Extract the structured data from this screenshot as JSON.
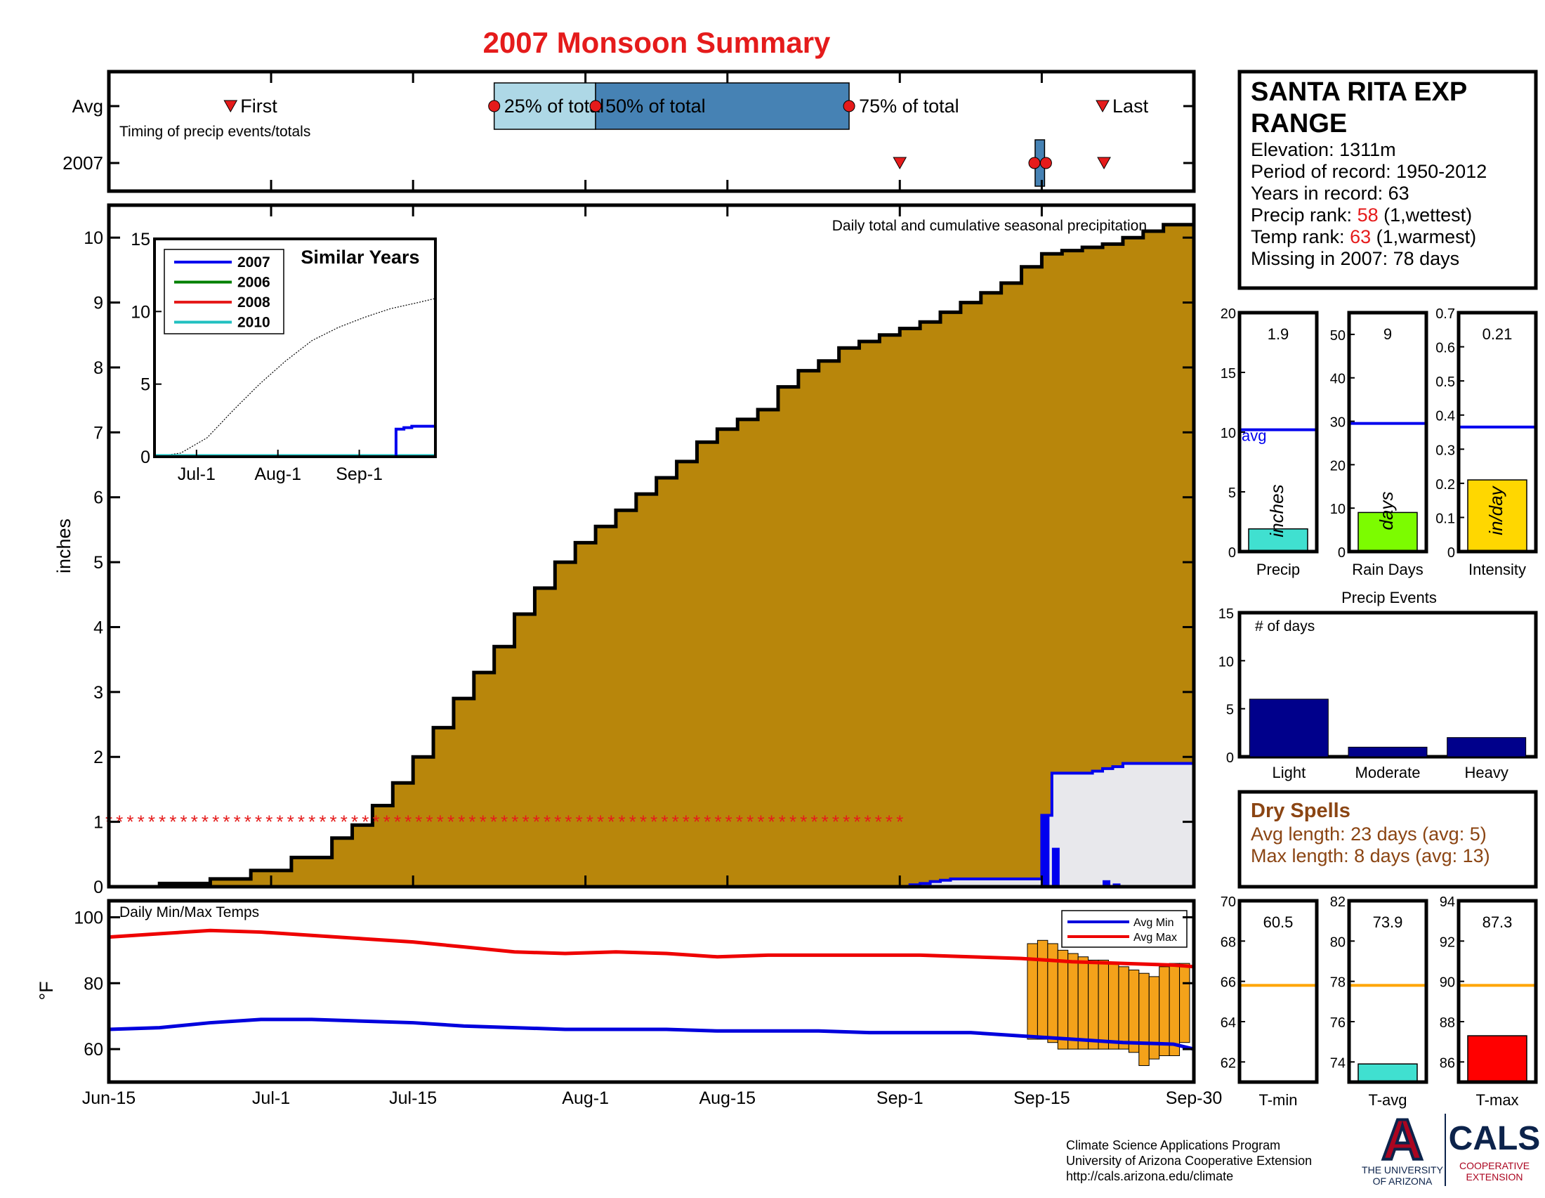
{
  "title": "2007 Monsoon Summary",
  "colors": {
    "title": "#e51b1b",
    "cum_fill": "#b8860b",
    "current": "#0000ee",
    "avg_temp_max": "#ee0000",
    "avg_temp_min": "#0000dd",
    "temp_bars": "#f4a21a",
    "box25": "#aed8e6",
    "box50": "#4682b4",
    "precip_bar": "#40e0d0",
    "raindays_bar": "#7cfc00",
    "intensity_bar": "#ffd700",
    "events_bar": "#00008b",
    "tavg_bar": "#40e0d0",
    "tmax_bar": "#ff0000",
    "avg_line_temp": "#ffa500",
    "dry_spell": "#8b4513",
    "rank_red": "#e51b1b"
  },
  "timing": {
    "row_avg": "Avg",
    "row_year": "2007",
    "caption": "Timing of precip events/totals",
    "first_label": "First",
    "last_label": "Last",
    "p25_label": "25% of total",
    "p50_label": "50% of total",
    "p75_label": "75% of total",
    "avg_first_day": 12,
    "avg_p25_day": 38,
    "avg_p50_day": 48,
    "avg_p75_day": 73,
    "avg_last_day": 98,
    "year_first_day": 78,
    "year_p25_day": 91,
    "year_p50_day": 92,
    "year_box_start_day": 91,
    "year_box_end_day": 92,
    "year_last_day": 98
  },
  "station": {
    "name_line1": "SANTA RITA EXP",
    "name_line2": "RANGE",
    "elevation": "Elevation: 1311m",
    "period": "Period of record: 1950-2012",
    "years": "Years in record: 63",
    "precip_rank_label": "Precip rank: ",
    "precip_rank_value": "58",
    "precip_rank_note": " (1,wettest)",
    "temp_rank_label": "Temp rank: ",
    "temp_rank_value": "63",
    "temp_rank_note": " (1,warmest)",
    "missing": "Missing in 2007: 78 days"
  },
  "main_chart": {
    "caption": "Daily total and cumulative seasonal precipitation",
    "ylabel": "inches",
    "ylim": [
      0,
      10.5
    ],
    "yticks": [
      "0",
      "1",
      "2",
      "3",
      "4",
      "5",
      "6",
      "7",
      "8",
      "9",
      "10"
    ],
    "xlim_days": [
      0,
      107
    ],
    "xticks": [
      {
        "day": 0,
        "label": "Jun-15"
      },
      {
        "day": 16,
        "label": "Jul-1"
      },
      {
        "day": 30,
        "label": "Jul-15"
      },
      {
        "day": 47,
        "label": "Aug-1"
      },
      {
        "day": 61,
        "label": "Aug-15"
      },
      {
        "day": 78,
        "label": "Sep-1"
      },
      {
        "day": 92,
        "label": "Sep-15"
      },
      {
        "day": 107,
        "label": "Sep-30"
      }
    ],
    "avg_cumulative": [
      [
        0,
        0
      ],
      [
        5,
        0.05
      ],
      [
        10,
        0.12
      ],
      [
        14,
        0.25
      ],
      [
        18,
        0.45
      ],
      [
        22,
        0.75
      ],
      [
        24,
        0.95
      ],
      [
        26,
        1.25
      ],
      [
        28,
        1.6
      ],
      [
        30,
        2.0
      ],
      [
        32,
        2.45
      ],
      [
        34,
        2.9
      ],
      [
        36,
        3.3
      ],
      [
        38,
        3.7
      ],
      [
        40,
        4.2
      ],
      [
        42,
        4.6
      ],
      [
        44,
        5.0
      ],
      [
        46,
        5.3
      ],
      [
        48,
        5.55
      ],
      [
        50,
        5.8
      ],
      [
        52,
        6.05
      ],
      [
        54,
        6.3
      ],
      [
        56,
        6.55
      ],
      [
        58,
        6.85
      ],
      [
        60,
        7.05
      ],
      [
        62,
        7.2
      ],
      [
        64,
        7.35
      ],
      [
        66,
        7.7
      ],
      [
        68,
        7.95
      ],
      [
        70,
        8.1
      ],
      [
        72,
        8.3
      ],
      [
        74,
        8.4
      ],
      [
        76,
        8.5
      ],
      [
        78,
        8.6
      ],
      [
        80,
        8.7
      ],
      [
        82,
        8.85
      ],
      [
        84,
        9.0
      ],
      [
        86,
        9.15
      ],
      [
        88,
        9.3
      ],
      [
        90,
        9.55
      ],
      [
        92,
        9.75
      ],
      [
        94,
        9.8
      ],
      [
        96,
        9.85
      ],
      [
        98,
        9.9
      ],
      [
        100,
        10.0
      ],
      [
        102,
        10.1
      ],
      [
        104,
        10.2
      ],
      [
        107,
        10.35
      ]
    ],
    "year_cumulative": [
      [
        78,
        0
      ],
      [
        79,
        0.03
      ],
      [
        80,
        0.05
      ],
      [
        81,
        0.08
      ],
      [
        82,
        0.1
      ],
      [
        83,
        0.12
      ],
      [
        84,
        0.12
      ],
      [
        89,
        0.12
      ],
      [
        91,
        0.12
      ],
      [
        92,
        1.1
      ],
      [
        93,
        1.75
      ],
      [
        95,
        1.75
      ],
      [
        97,
        1.78
      ],
      [
        98,
        1.82
      ],
      [
        99,
        1.85
      ],
      [
        100,
        1.9
      ],
      [
        107,
        1.9
      ]
    ],
    "year_daily": [
      [
        92,
        1.1
      ],
      [
        93,
        0.6
      ],
      [
        98,
        0.1
      ],
      [
        99,
        0.05
      ]
    ],
    "missing_marker_y": 1,
    "missing_start_day": 0,
    "missing_end_day": 78
  },
  "inset": {
    "title": "Similar Years",
    "ylim": [
      0,
      15
    ],
    "yticks": [
      "0",
      "5",
      "10",
      "15"
    ],
    "xlim_days": [
      0,
      107
    ],
    "xticks": [
      {
        "day": 16,
        "label": "Jul-1"
      },
      {
        "day": 47,
        "label": "Aug-1"
      },
      {
        "day": 78,
        "label": "Sep-1"
      }
    ],
    "legend": [
      {
        "name": "2007",
        "color": "#0000ee"
      },
      {
        "name": "2006",
        "color": "#008000"
      },
      {
        "name": "2008",
        "color": "#e51b1b"
      },
      {
        "name": "2010",
        "color": "#20c0c0"
      }
    ],
    "avg_line": [
      [
        0,
        0
      ],
      [
        10,
        0.25
      ],
      [
        20,
        1.3
      ],
      [
        30,
        3.2
      ],
      [
        40,
        5.0
      ],
      [
        50,
        6.6
      ],
      [
        60,
        8.0
      ],
      [
        70,
        8.9
      ],
      [
        80,
        9.6
      ],
      [
        90,
        10.2
      ],
      [
        100,
        10.6
      ],
      [
        107,
        10.9
      ]
    ],
    "year2007": [
      [
        0,
        0
      ],
      [
        91,
        0
      ],
      [
        92,
        1.9
      ],
      [
        95,
        2.0
      ],
      [
        98,
        2.1
      ],
      [
        107,
        2.1
      ]
    ]
  },
  "temps": {
    "caption": "Daily Min/Max Temps",
    "ylabel": "°F",
    "ylim": [
      50,
      105
    ],
    "yticks": [
      {
        "v": 60,
        "label": "60"
      },
      {
        "v": 80,
        "label": "80"
      },
      {
        "v": 100,
        "label": "100"
      }
    ],
    "legend_min": "Avg Min",
    "legend_max": "Avg Max",
    "avg_max": [
      [
        0,
        94
      ],
      [
        5,
        95
      ],
      [
        10,
        96
      ],
      [
        15,
        95.5
      ],
      [
        20,
        94.5
      ],
      [
        25,
        93.5
      ],
      [
        30,
        92.5
      ],
      [
        35,
        91
      ],
      [
        40,
        89.5
      ],
      [
        45,
        89
      ],
      [
        50,
        89.5
      ],
      [
        55,
        89
      ],
      [
        60,
        88
      ],
      [
        65,
        88.5
      ],
      [
        70,
        88.5
      ],
      [
        75,
        88.5
      ],
      [
        80,
        88.5
      ],
      [
        85,
        88
      ],
      [
        90,
        87.5
      ],
      [
        95,
        86.5
      ],
      [
        100,
        86
      ],
      [
        105,
        85.5
      ],
      [
        107,
        85
      ]
    ],
    "avg_min": [
      [
        0,
        66
      ],
      [
        5,
        66.5
      ],
      [
        10,
        68
      ],
      [
        15,
        69
      ],
      [
        20,
        69
      ],
      [
        25,
        68.5
      ],
      [
        30,
        68
      ],
      [
        35,
        67
      ],
      [
        40,
        66.5
      ],
      [
        45,
        66
      ],
      [
        50,
        66
      ],
      [
        55,
        66
      ],
      [
        60,
        65.5
      ],
      [
        65,
        65.5
      ],
      [
        70,
        65.5
      ],
      [
        75,
        65
      ],
      [
        80,
        65
      ],
      [
        85,
        65
      ],
      [
        90,
        64
      ],
      [
        95,
        63
      ],
      [
        100,
        62
      ],
      [
        105,
        61.5
      ],
      [
        107,
        60
      ]
    ],
    "bars": [
      {
        "day": 91,
        "low": 63,
        "high": 92
      },
      {
        "day": 92,
        "low": 63,
        "high": 93
      },
      {
        "day": 93,
        "low": 62,
        "high": 92
      },
      {
        "day": 94,
        "low": 60,
        "high": 90
      },
      {
        "day": 95,
        "low": 60,
        "high": 89
      },
      {
        "day": 96,
        "low": 60,
        "high": 88
      },
      {
        "day": 97,
        "low": 60,
        "high": 87
      },
      {
        "day": 98,
        "low": 60,
        "high": 87
      },
      {
        "day": 99,
        "low": 60,
        "high": 86
      },
      {
        "day": 100,
        "low": 60,
        "high": 85
      },
      {
        "day": 101,
        "low": 59,
        "high": 84
      },
      {
        "day": 102,
        "low": 55,
        "high": 83
      },
      {
        "day": 103,
        "low": 57,
        "high": 82
      },
      {
        "day": 104,
        "low": 58,
        "high": 85
      },
      {
        "day": 105,
        "low": 58,
        "high": 86
      },
      {
        "day": 106,
        "low": 62,
        "high": 86
      }
    ]
  },
  "stat_precip": {
    "label": "Precip",
    "value_text": "1.9",
    "value": 1.9,
    "avg": 10.2,
    "avg_label": "avg",
    "unit": "inches",
    "ylim": [
      0,
      20
    ],
    "yticks": [
      "0",
      "5",
      "10",
      "15",
      "20"
    ]
  },
  "stat_raindays": {
    "label": "Rain Days",
    "value_text": "9",
    "value": 9,
    "avg": 29.5,
    "unit": "days",
    "ylim": [
      0,
      55
    ],
    "yticks": [
      "0",
      "10",
      "20",
      "30",
      "40",
      "50"
    ]
  },
  "stat_intensity": {
    "label": "Intensity",
    "value_text": "0.21",
    "value": 0.21,
    "avg": 0.365,
    "unit": "in/day",
    "ylim": [
      0,
      0.7
    ],
    "yticks": [
      "0",
      "0.1",
      "0.2",
      "0.3",
      "0.4",
      "0.5",
      "0.6",
      "0.7"
    ]
  },
  "events": {
    "title": "Precip Events",
    "caption": "# of days",
    "ylim": [
      0,
      15
    ],
    "yticks": [
      "0",
      "5",
      "10",
      "15"
    ],
    "categories": [
      "Light",
      "Moderate",
      "Heavy"
    ],
    "values": [
      6,
      1,
      2
    ]
  },
  "dry_spells": {
    "title": "Dry Spells",
    "avg_length": "Avg length: 23 days (avg: 5)",
    "max_length": "Max length: 8 days (avg: 13)"
  },
  "stat_tmin": {
    "label": "T-min",
    "value_text": "60.5",
    "value": 60.5,
    "avg": 65.8,
    "ylim": [
      61,
      70
    ],
    "yticks": [
      "62",
      "64",
      "66",
      "68",
      "70"
    ]
  },
  "stat_tavg": {
    "label": "T-avg",
    "value_text": "73.9",
    "value": 73.9,
    "avg": 77.8,
    "ylim": [
      73,
      82
    ],
    "yticks": [
      "74",
      "76",
      "78",
      "80",
      "82"
    ]
  },
  "stat_tmax": {
    "label": "T-max",
    "value_text": "87.3",
    "value": 87.3,
    "avg": 89.8,
    "ylim": [
      85,
      94
    ],
    "yticks": [
      "86",
      "88",
      "90",
      "92",
      "94"
    ]
  },
  "footer": {
    "line1": "Climate Science Applications Program",
    "line2": "University of Arizona Cooperative Extension",
    "line3": "http://cals.arizona.edu/climate",
    "ua_letter": "A",
    "ua_text1": "THE UNIVERSITY",
    "ua_text2": "OF ARIZONA",
    "cals_text": "CALS",
    "cals_sub1": "COOPERATIVE",
    "cals_sub2": "EXTENSION"
  }
}
